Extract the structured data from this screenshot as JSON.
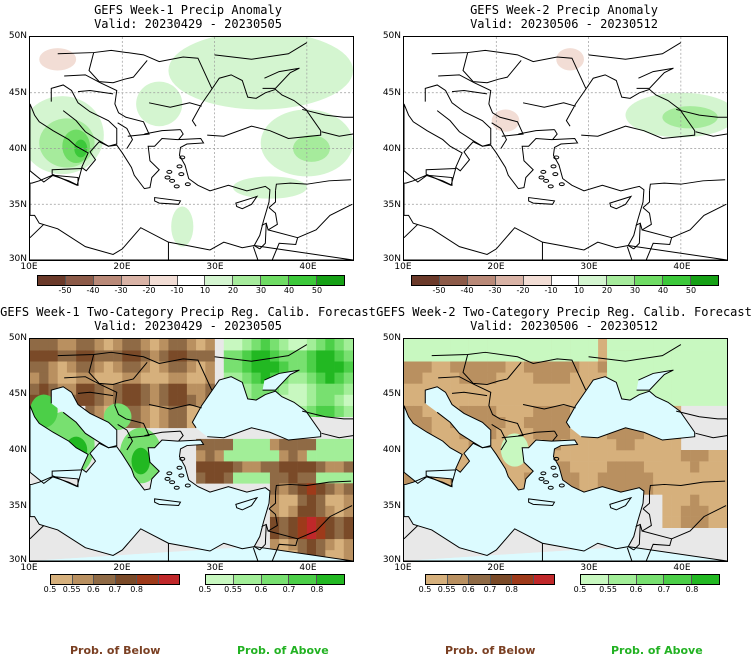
{
  "panels": [
    {
      "id": "tl",
      "title": "GEFS Week-1 Precip Anomaly",
      "valid": "Valid: 20230429 - 20230505"
    },
    {
      "id": "tr",
      "title": "GEFS Week-2 Precip Anomaly",
      "valid": "Valid: 20230506 - 20230512"
    },
    {
      "id": "bl",
      "title": "GEFS Week-1 Two-Category Precip Reg. Calib. Forecast",
      "valid": "Valid: 20230429 - 20230505"
    },
    {
      "id": "br",
      "title": "GEFS Week-2 Two-Category Precip Reg. Calib. Forecast",
      "valid": "Valid: 20230506 - 20230512"
    }
  ],
  "lat_labels": [
    "50N",
    "45N",
    "40N",
    "35N",
    "30N"
  ],
  "lon_labels": [
    "10E",
    "20E",
    "30E",
    "40E"
  ],
  "anomaly_ticks": [
    "-50",
    "-40",
    "-30",
    "-20",
    "-10",
    "10",
    "20",
    "30",
    "40",
    "50"
  ],
  "anomaly_colors": [
    "#6b3a2a",
    "#8c5a48",
    "#b98978",
    "#d9b3a6",
    "#f2ddd5",
    "#ffffff",
    "#d4f5d0",
    "#a6eb9c",
    "#6fdc64",
    "#3cc83a",
    "#15a015"
  ],
  "prob_ticks": [
    "0.5",
    "0.55",
    "0.6",
    "0.7",
    "0.8"
  ],
  "below_colors": [
    "#d6b07c",
    "#b99060",
    "#8f6a45",
    "#7a4a28",
    "#9e3a1a",
    "#c0282a"
  ],
  "above_colors": [
    "#c8f8c0",
    "#a2ee98",
    "#78e070",
    "#4ccf48",
    "#22b822"
  ],
  "ocean_color": "#dcfbff",
  "footer": {
    "below": "Prob. of Below",
    "above": "Prob. of Above",
    "below_color": "#7a3f22",
    "above_color": "#22b222"
  }
}
